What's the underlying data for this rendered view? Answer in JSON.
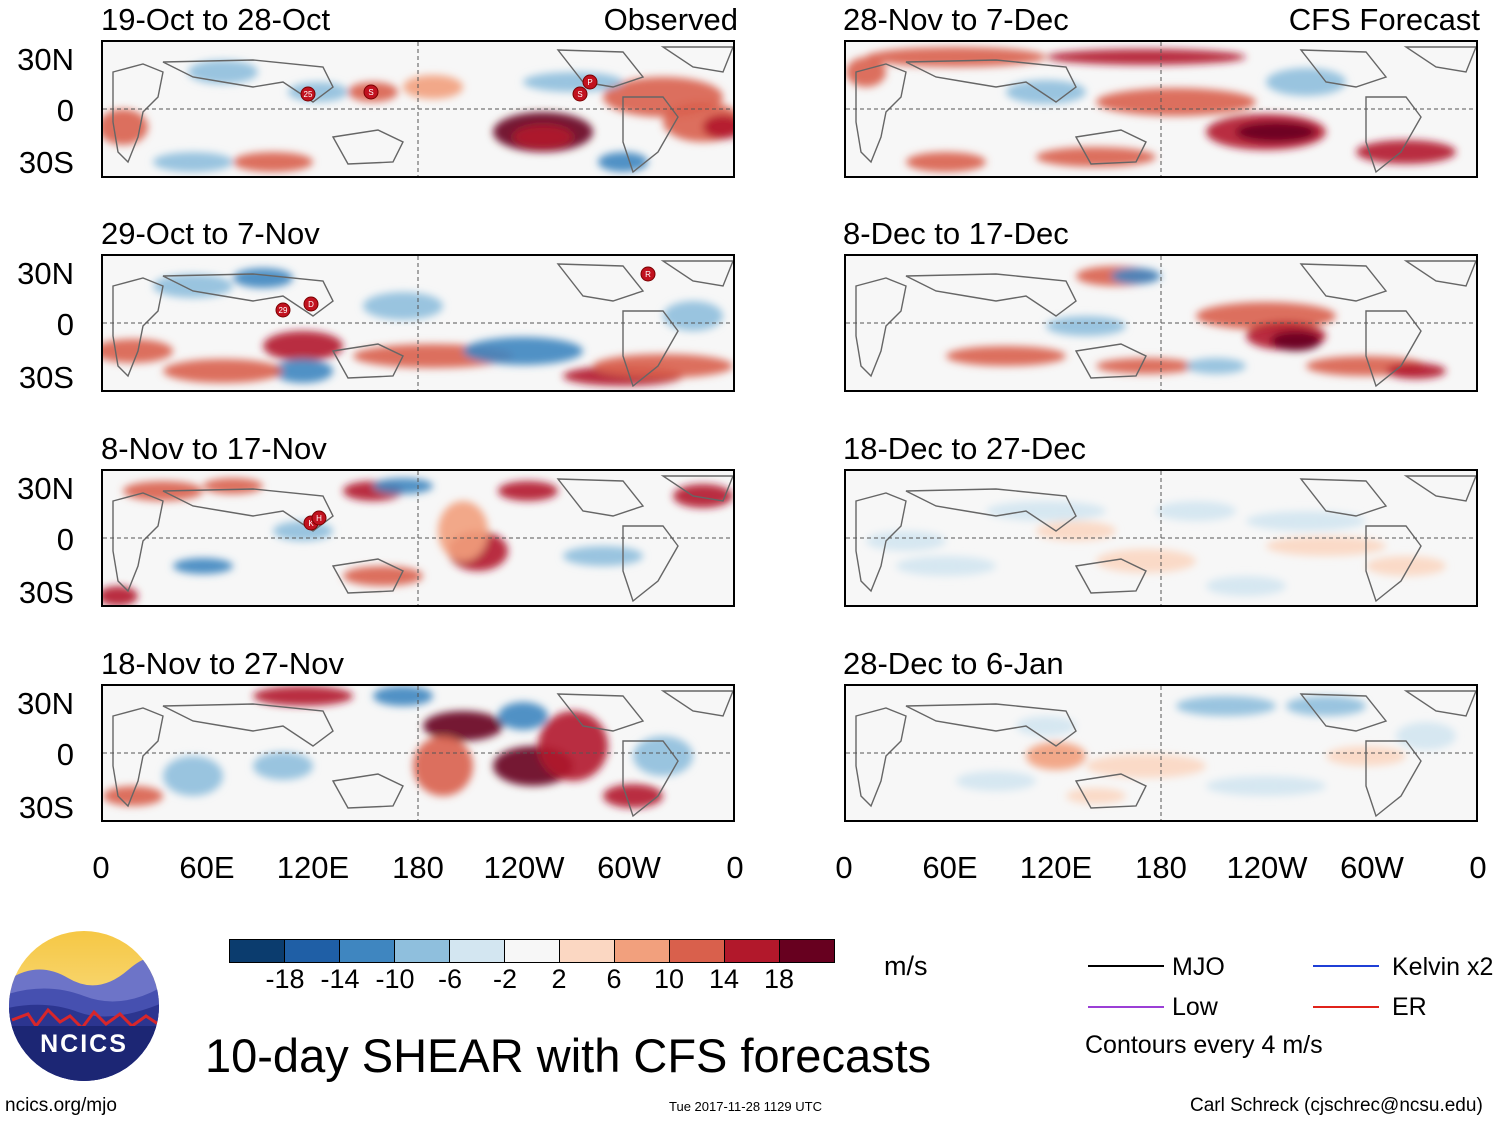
{
  "title": "10-day SHEAR with CFS forecasts",
  "left_tag": "Observed",
  "right_tag": "CFS Forecast",
  "panels_left": [
    {
      "title": "19-Oct to 28-Oct"
    },
    {
      "title": "29-Oct to 7-Nov"
    },
    {
      "title": "8-Nov to 17-Nov"
    },
    {
      "title": "18-Nov to 27-Nov"
    }
  ],
  "panels_right": [
    {
      "title": "28-Nov to 7-Dec"
    },
    {
      "title": "8-Dec to 17-Dec"
    },
    {
      "title": "18-Dec to 27-Dec"
    },
    {
      "title": "28-Dec to 6-Jan"
    }
  ],
  "lat_labels": [
    "30N",
    "0",
    "30S"
  ],
  "lon_labels": [
    "0",
    "60E",
    "120E",
    "180",
    "120W",
    "60W",
    "0"
  ],
  "colorbar": {
    "unit": "m/s",
    "ticks": [
      "-18",
      "-14",
      "-10",
      "-6",
      "-2",
      "2",
      "6",
      "10",
      "14",
      "18"
    ],
    "colors": [
      "#0b3c6e",
      "#1f5fa6",
      "#3f86c0",
      "#8fbfdd",
      "#d3e6f1",
      "#f7f7f7",
      "#fbd7c2",
      "#f2a07d",
      "#d9604c",
      "#b2182b",
      "#67001f"
    ]
  },
  "legend": {
    "mjo": "MJO",
    "kelvin": "Kelvin x2",
    "low": "Low",
    "er": "ER",
    "contours": "Contours every 4 m/s",
    "colors": {
      "mjo": "#000000",
      "kelvin": "#1f3fd6",
      "low": "#9b3fd6",
      "er": "#e0231b"
    }
  },
  "storm_markers": {
    "p1": [
      "25",
      "S",
      "S",
      "P"
    ],
    "p2": [
      "29",
      "D",
      "R"
    ],
    "p3": [
      "K",
      "H"
    ]
  },
  "footer": {
    "left": "ncics.org/mjo",
    "center": "Tue 2017-11-28 1129 UTC",
    "right": "Carl Schreck (cjschrec@ncsu.edu)",
    "logo_text": "NCICS"
  }
}
